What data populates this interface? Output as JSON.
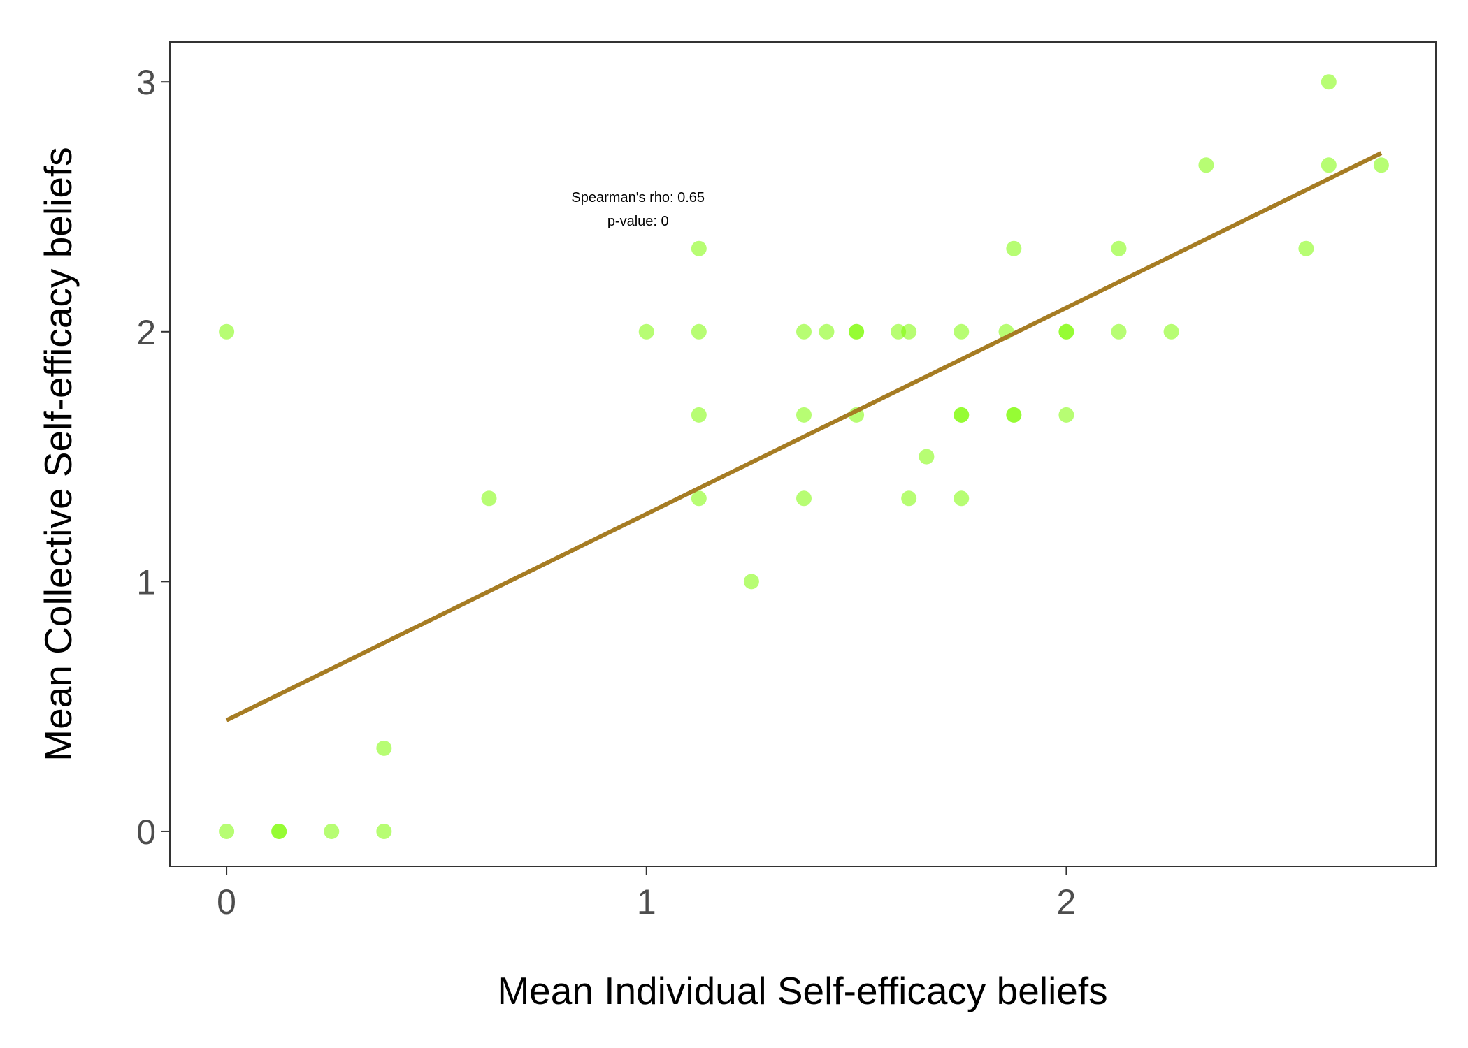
{
  "chart_data": {
    "type": "scatter",
    "xlabel": "Mean Individual Self-efficacy beliefs",
    "ylabel": "Mean Collective Self-efficacy beliefs",
    "xlim": [
      -0.135,
      2.88
    ],
    "ylim": [
      -0.14,
      3.16
    ],
    "x_ticks": [
      0,
      1,
      2
    ],
    "y_ticks": [
      0,
      1,
      2,
      3
    ],
    "grid": false,
    "annotation": [
      "Spearman's rho: 0.65",
      "p-value: 0"
    ],
    "annotation_anchor": {
      "x": 0.98,
      "y": 2.52
    },
    "point_color": "#7cfc00",
    "line_color": "#a67c23",
    "points": [
      {
        "x": 0,
        "y": 0
      },
      {
        "x": 0.125,
        "y": 0
      },
      {
        "x": 0.125,
        "y": 0
      },
      {
        "x": 0.25,
        "y": 0
      },
      {
        "x": 0.375,
        "y": 0
      },
      {
        "x": 0.375,
        "y": 0.333
      },
      {
        "x": 0,
        "y": 2
      },
      {
        "x": 0.625,
        "y": 1.333
      },
      {
        "x": 1,
        "y": 2
      },
      {
        "x": 1.125,
        "y": 2.333
      },
      {
        "x": 1.125,
        "y": 2
      },
      {
        "x": 1.125,
        "y": 1.667
      },
      {
        "x": 1.125,
        "y": 1.333
      },
      {
        "x": 1.25,
        "y": 1
      },
      {
        "x": 1.375,
        "y": 2
      },
      {
        "x": 1.375,
        "y": 1.667
      },
      {
        "x": 1.375,
        "y": 1.333
      },
      {
        "x": 1.429,
        "y": 2
      },
      {
        "x": 1.5,
        "y": 2
      },
      {
        "x": 1.5,
        "y": 2
      },
      {
        "x": 1.5,
        "y": 1.667
      },
      {
        "x": 1.6,
        "y": 2
      },
      {
        "x": 1.625,
        "y": 2
      },
      {
        "x": 1.625,
        "y": 1.333
      },
      {
        "x": 1.667,
        "y": 1.5
      },
      {
        "x": 1.75,
        "y": 2
      },
      {
        "x": 1.75,
        "y": 1.667
      },
      {
        "x": 1.75,
        "y": 1.667
      },
      {
        "x": 1.75,
        "y": 1.333
      },
      {
        "x": 1.857,
        "y": 2
      },
      {
        "x": 1.875,
        "y": 2.333
      },
      {
        "x": 1.875,
        "y": 1.667
      },
      {
        "x": 1.875,
        "y": 1.667
      },
      {
        "x": 2,
        "y": 2
      },
      {
        "x": 2,
        "y": 2
      },
      {
        "x": 2,
        "y": 1.667
      },
      {
        "x": 2.125,
        "y": 2.333
      },
      {
        "x": 2.125,
        "y": 2
      },
      {
        "x": 2.25,
        "y": 2
      },
      {
        "x": 2.333,
        "y": 2.667
      },
      {
        "x": 2.571,
        "y": 2.333
      },
      {
        "x": 2.625,
        "y": 3
      },
      {
        "x": 2.625,
        "y": 2.667
      },
      {
        "x": 2.75,
        "y": 2.667
      }
    ],
    "fit_line": {
      "x": [
        0,
        2.75
      ],
      "y": [
        0.445,
        2.715
      ]
    }
  }
}
